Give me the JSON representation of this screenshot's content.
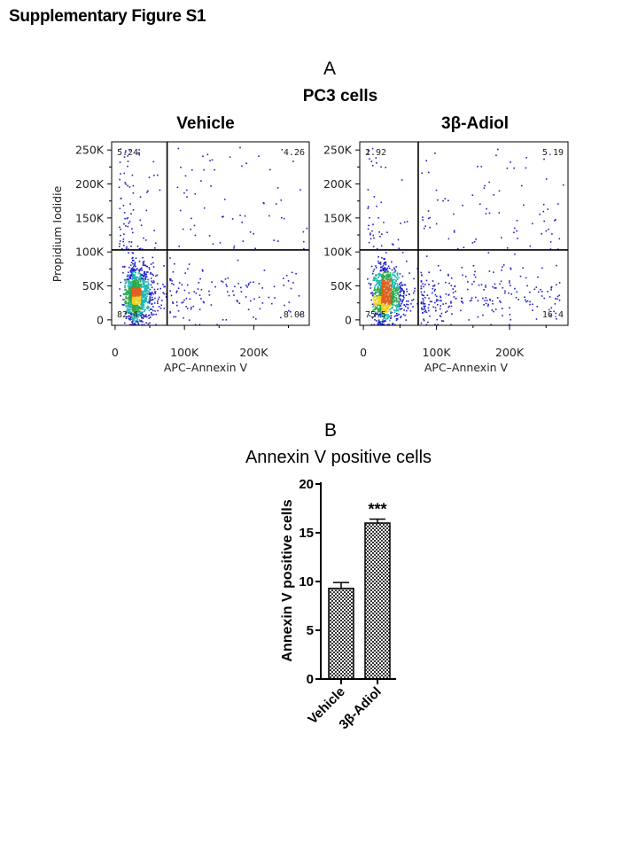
{
  "supplementary_title": "Supplementary Figure S1",
  "panel_a": {
    "label": "A",
    "cell_line": "PC3 cells"
  },
  "panel_b": {
    "label": "B",
    "title": "Annexin V positive cells"
  },
  "colors": {
    "density_low": "#1f1fc8",
    "density_mid": "#1fb6b0",
    "density_high": "#2ea84a",
    "density_top": "#f0d020",
    "density_peak": "#e06020",
    "bar_fill": "#8a8a8a",
    "axis": "#000000"
  },
  "chart_data": [
    {
      "type": "scatter",
      "title": "Vehicle",
      "xlabel": "APC–Annexin V",
      "ylabel": "Propidium Iodidie",
      "xlim": [
        -5000,
        280000
      ],
      "ylim": [
        -8000,
        262000
      ],
      "x_ticks": [
        {
          "label": "0",
          "value": 0
        },
        {
          "label": "100K",
          "value": 100000
        },
        {
          "label": "200K",
          "value": 200000
        }
      ],
      "y_ticks": [
        {
          "label": "0",
          "value": 0
        },
        {
          "label": "50K",
          "value": 50000
        },
        {
          "label": "100K",
          "value": 100000
        },
        {
          "label": "150K",
          "value": 150000
        },
        {
          "label": "200K",
          "value": 200000
        },
        {
          "label": "250K",
          "value": 250000
        }
      ],
      "gates": {
        "x": 75000,
        "y": 103000
      },
      "quadrants": {
        "upper_left": "5.24",
        "upper_right": "4.26",
        "lower_left": "82.4",
        "lower_right": "8.08"
      },
      "seed": 7
    },
    {
      "type": "scatter",
      "title": "3β-Adiol",
      "xlabel": "APC–Annexin V",
      "ylabel": "",
      "xlim": [
        -5000,
        280000
      ],
      "ylim": [
        -8000,
        262000
      ],
      "x_ticks": [
        {
          "label": "0",
          "value": 0
        },
        {
          "label": "100K",
          "value": 100000
        },
        {
          "label": "200K",
          "value": 200000
        }
      ],
      "y_ticks": [
        {
          "label": "0",
          "value": 0
        },
        {
          "label": "50K",
          "value": 50000
        },
        {
          "label": "100K",
          "value": 100000
        },
        {
          "label": "150K",
          "value": 150000
        },
        {
          "label": "200K",
          "value": 200000
        },
        {
          "label": "250K",
          "value": 250000
        }
      ],
      "gates": {
        "x": 75000,
        "y": 103000
      },
      "quadrants": {
        "upper_left": "2.92",
        "upper_right": "5.19",
        "lower_left": "75.5",
        "lower_right": "16.4"
      },
      "seed": 19
    },
    {
      "type": "bar",
      "title": "Annexin V positive cells",
      "categories": [
        "Vehicle",
        "3β-Adiol"
      ],
      "values": [
        9.3,
        16.0
      ],
      "errors": [
        0.6,
        0.4
      ],
      "significance": [
        "",
        "***"
      ],
      "ylabel": "Annexin V positive cells",
      "ylim": [
        0,
        20
      ],
      "y_ticks": [
        "0",
        "5",
        "10",
        "15",
        "20"
      ]
    }
  ]
}
